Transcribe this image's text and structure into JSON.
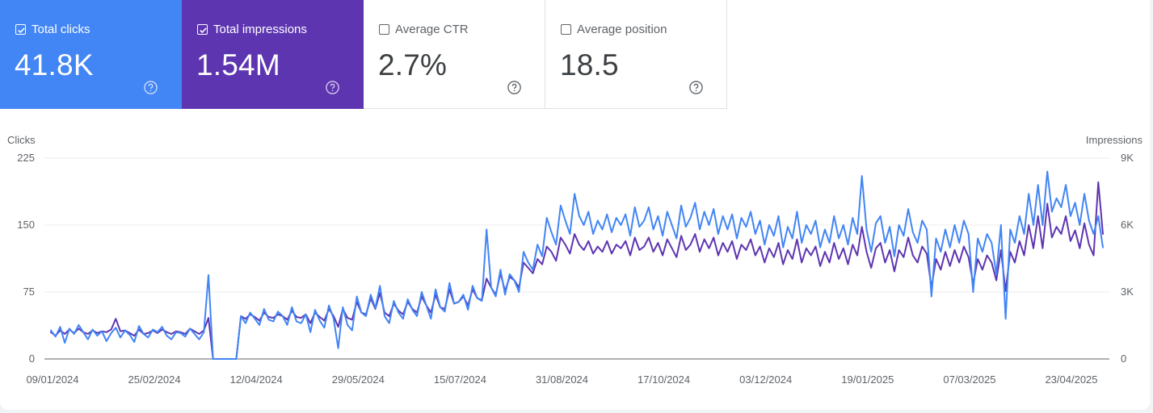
{
  "colors": {
    "clicks": "#4285f4",
    "impressions": "#5e35b1",
    "clicks_card_bg": "#4285f4",
    "impressions_card_bg": "#5e35b1"
  },
  "cards": [
    {
      "key": "clicks",
      "label": "Total clicks",
      "value": "41.8K",
      "checked": true,
      "help_icon": "help-circle-icon"
    },
    {
      "key": "impressions",
      "label": "Total impressions",
      "value": "1.54M",
      "checked": true,
      "help_icon": "help-circle-icon"
    },
    {
      "key": "ctr",
      "label": "Average CTR",
      "value": "2.7%",
      "checked": false,
      "help_icon": "help-circle-icon"
    },
    {
      "key": "position",
      "label": "Average position",
      "value": "18.5",
      "checked": false,
      "help_icon": "help-circle-icon"
    }
  ],
  "chart_data": {
    "type": "line",
    "left_axis_title": "Clicks",
    "right_axis_title": "Impressions",
    "left_ticks": [
      "0",
      "75",
      "150",
      "225"
    ],
    "right_ticks": [
      "0",
      "3K",
      "6K",
      "9K"
    ],
    "y_left_range": [
      0,
      225
    ],
    "y_right_range": [
      0,
      9000
    ],
    "x_labels": [
      "09/01/2024",
      "25/02/2024",
      "12/04/2024",
      "29/05/2024",
      "15/07/2024",
      "31/08/2024",
      "17/10/2024",
      "03/12/2024",
      "19/01/2025",
      "07/03/2025",
      "23/04/2025"
    ],
    "x_start": "2024-01-09",
    "x_end": "2025-05-12",
    "grid": true,
    "series": [
      {
        "name": "Clicks",
        "axis": "left",
        "sampled_values": [
          32,
          25,
          36,
          18,
          34,
          28,
          38,
          30,
          22,
          33,
          26,
          31,
          20,
          29,
          35,
          24,
          32,
          27,
          19,
          37,
          28,
          24,
          33,
          30,
          36,
          26,
          22,
          30,
          29,
          25,
          34,
          28,
          22,
          30,
          94,
          0,
          0,
          0,
          0,
          0,
          0,
          48,
          40,
          52,
          45,
          38,
          56,
          44,
          42,
          53,
          48,
          38,
          58,
          42,
          40,
          50,
          30,
          55,
          43,
          35,
          60,
          45,
          12,
          58,
          38,
          32,
          70,
          52,
          48,
          72,
          57,
          82,
          48,
          40,
          65,
          52,
          45,
          67,
          55,
          48,
          75,
          60,
          45,
          78,
          58,
          53,
          85,
          62,
          64,
          72,
          55,
          82,
          68,
          65,
          145,
          80,
          70,
          100,
          72,
          95,
          88,
          75,
          120,
          108,
          100,
          128,
          115,
          158,
          142,
          128,
          172,
          155,
          140,
          185,
          160,
          150,
          165,
          140,
          155,
          145,
          162,
          142,
          158,
          150,
          162,
          138,
          170,
          148,
          155,
          170,
          145,
          160,
          138,
          165,
          150,
          135,
          172,
          148,
          158,
          175,
          145,
          165,
          150,
          168,
          140,
          160,
          145,
          162,
          135,
          158,
          148,
          165,
          140,
          155,
          128,
          150,
          138,
          160,
          125,
          148,
          135,
          165,
          130,
          150,
          140,
          155,
          125,
          145,
          130,
          160,
          135,
          150,
          128,
          158,
          140,
          205,
          145,
          120,
          152,
          160,
          130,
          148,
          115,
          150,
          138,
          168,
          142,
          130,
          155,
          145,
          70,
          135,
          120,
          145,
          125,
          150,
          130,
          155,
          140,
          75,
          135,
          120,
          140,
          130,
          95,
          150,
          45,
          145,
          130,
          160,
          140,
          185,
          150,
          195,
          150,
          210,
          165,
          180,
          170,
          195,
          160,
          175,
          150,
          185,
          155,
          140,
          160,
          125
        ]
      },
      {
        "name": "Impressions",
        "axis": "right",
        "sampled_values": [
          1200,
          1040,
          1280,
          1120,
          1320,
          1160,
          1360,
          1200,
          1120,
          1280,
          1160,
          1240,
          1200,
          1320,
          1800,
          1240,
          1280,
          1160,
          1040,
          1320,
          1120,
          1160,
          1280,
          1160,
          1320,
          1200,
          1120,
          1240,
          1200,
          1120,
          1360,
          1240,
          1120,
          1280,
          1840,
          0,
          0,
          0,
          0,
          0,
          0,
          1920,
          1800,
          2000,
          1880,
          1720,
          2080,
          1880,
          1840,
          2000,
          1920,
          1760,
          2160,
          1880,
          1840,
          2000,
          1600,
          2080,
          1880,
          1720,
          2240,
          1920,
          1440,
          2240,
          1840,
          1760,
          2560,
          2080,
          2000,
          2720,
          2240,
          2960,
          2080,
          1920,
          2480,
          2160,
          2000,
          2560,
          2240,
          2080,
          2800,
          2400,
          2080,
          2880,
          2320,
          2240,
          3120,
          2480,
          2560,
          2800,
          2400,
          3120,
          2720,
          2640,
          3600,
          3200,
          2880,
          3840,
          3040,
          3680,
          3520,
          3200,
          4320,
          4080,
          3840,
          4480,
          4240,
          5040,
          4800,
          4400,
          5440,
          5120,
          4720,
          5600,
          5120,
          4880,
          5280,
          4720,
          5040,
          4800,
          5280,
          4720,
          5120,
          4960,
          5280,
          4640,
          5440,
          4880,
          5040,
          5440,
          4800,
          5200,
          4640,
          5360,
          4960,
          4560,
          5520,
          4880,
          5120,
          5600,
          4800,
          5360,
          4960,
          5440,
          4640,
          5200,
          4800,
          5280,
          4480,
          5120,
          4880,
          5360,
          4640,
          5040,
          4320,
          4960,
          4560,
          5200,
          4240,
          4880,
          4480,
          5360,
          4320,
          4960,
          4640,
          5040,
          4160,
          4800,
          4320,
          5200,
          4480,
          4960,
          4240,
          5120,
          4640,
          5920,
          4800,
          4080,
          4960,
          5200,
          4320,
          4880,
          3920,
          4880,
          4560,
          5440,
          4640,
          4320,
          5040,
          4720,
          3200,
          4480,
          4000,
          4800,
          4160,
          4880,
          4320,
          5040,
          4560,
          3360,
          4480,
          4000,
          4640,
          4320,
          3520,
          4880,
          3040,
          4800,
          4320,
          5280,
          4640,
          6000,
          4960,
          6400,
          4960,
          6960,
          5440,
          5920,
          5600,
          6400,
          5280,
          5760,
          4960,
          6080,
          5120,
          4640,
          7920,
          5600
        ]
      }
    ]
  }
}
